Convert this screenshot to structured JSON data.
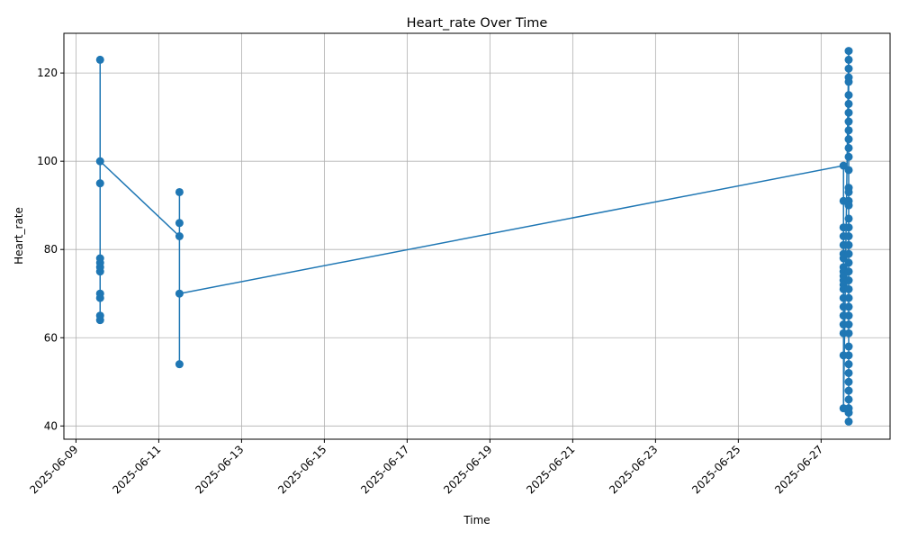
{
  "chart_data": {
    "type": "line",
    "title": "Heart_rate Over Time",
    "x_label": "Time",
    "y_label": "Heart_rate",
    "x": [
      "2025-06-09T14:00",
      "2025-06-09T14:00",
      "2025-06-09T14:00",
      "2025-06-09T14:00",
      "2025-06-09T14:00",
      "2025-06-09T14:00",
      "2025-06-09T14:00",
      "2025-06-09T14:00",
      "2025-06-09T14:00",
      "2025-06-09T14:00",
      "2025-06-09T14:00",
      "2025-06-11T12:00",
      "2025-06-11T12:00",
      "2025-06-11T12:00",
      "2025-06-11T12:00",
      "2025-06-11T12:00",
      "2025-06-27T13:00",
      "2025-06-27T13:00",
      "2025-06-27T13:00",
      "2025-06-27T13:00",
      "2025-06-27T13:00",
      "2025-06-27T13:00",
      "2025-06-27T13:00",
      "2025-06-27T13:00",
      "2025-06-27T13:00",
      "2025-06-27T13:00",
      "2025-06-27T13:00",
      "2025-06-27T13:00",
      "2025-06-27T13:00",
      "2025-06-27T13:00",
      "2025-06-27T13:00",
      "2025-06-27T13:00",
      "2025-06-27T13:00",
      "2025-06-27T13:00",
      "2025-06-27T13:00",
      "2025-06-27T13:00",
      "2025-06-27T16:00",
      "2025-06-27T16:00",
      "2025-06-27T16:00",
      "2025-06-27T16:00",
      "2025-06-27T16:00",
      "2025-06-27T16:00",
      "2025-06-27T16:00",
      "2025-06-27T16:00",
      "2025-06-27T16:00",
      "2025-06-27T16:00",
      "2025-06-27T16:00",
      "2025-06-27T16:00",
      "2025-06-27T16:00",
      "2025-06-27T16:00",
      "2025-06-27T16:00",
      "2025-06-27T16:00",
      "2025-06-27T16:00",
      "2025-06-27T16:00",
      "2025-06-27T16:00",
      "2025-06-27T16:00",
      "2025-06-27T16:00",
      "2025-06-27T16:00",
      "2025-06-27T16:00",
      "2025-06-27T16:00",
      "2025-06-27T16:00",
      "2025-06-27T16:00",
      "2025-06-27T16:00",
      "2025-06-27T16:00",
      "2025-06-27T16:00",
      "2025-06-27T16:00",
      "2025-06-27T16:00",
      "2025-06-27T16:00",
      "2025-06-27T16:00",
      "2025-06-27T16:00",
      "2025-06-27T16:00",
      "2025-06-27T16:00",
      "2025-06-27T16:00",
      "2025-06-27T16:00",
      "2025-06-27T16:00",
      "2025-06-27T16:00",
      "2025-06-27T16:00",
      "2025-06-27T16:00"
    ],
    "series": [
      {
        "name": "Heart_rate",
        "color": "#1f77b4",
        "values": [
          64,
          65,
          69,
          70,
          75,
          76,
          77,
          78,
          95,
          123,
          100,
          83,
          86,
          93,
          54,
          70,
          99,
          91,
          85,
          83,
          81,
          79,
          78,
          76,
          75,
          74,
          73,
          72,
          71,
          69,
          67,
          65,
          63,
          61,
          56,
          44,
          125,
          123,
          121,
          119,
          118,
          115,
          113,
          111,
          109,
          107,
          105,
          103,
          101,
          98,
          94,
          93,
          91,
          90,
          87,
          85,
          83,
          81,
          79,
          77,
          75,
          73,
          71,
          69,
          67,
          65,
          63,
          61,
          58,
          56,
          54,
          52,
          50,
          48,
          46,
          44,
          43,
          41
        ]
      }
    ],
    "xlim": [
      "2025-06-08T17:00",
      "2025-06-28T16:00"
    ],
    "xticks": [
      "2025-06-09",
      "2025-06-11",
      "2025-06-13",
      "2025-06-15",
      "2025-06-17",
      "2025-06-19",
      "2025-06-21",
      "2025-06-23",
      "2025-06-25",
      "2025-06-27"
    ],
    "ylim": [
      37,
      129
    ],
    "yticks": [
      40,
      60,
      80,
      100,
      120
    ],
    "grid": true
  }
}
